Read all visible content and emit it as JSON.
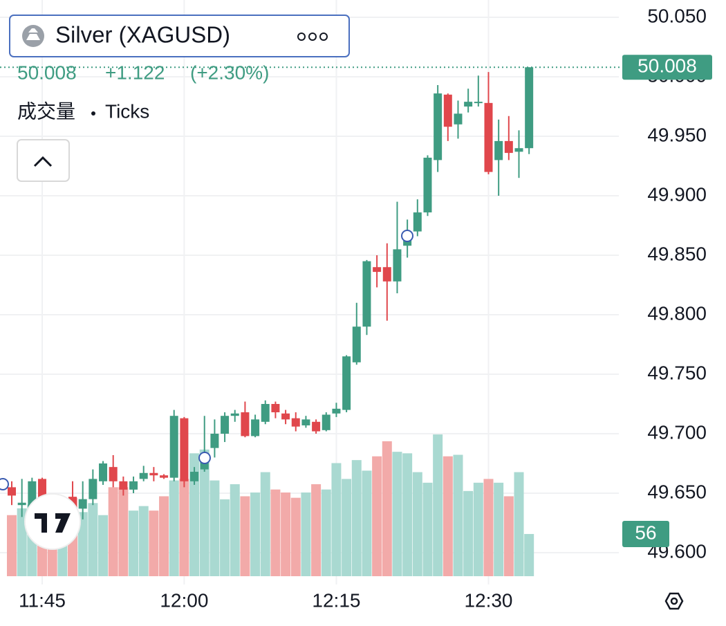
{
  "header": {
    "symbol": "Silver (XAGUSD)",
    "price": "50.008",
    "change": "+1.122",
    "change_pct": "(+2.30%)",
    "volume_label": "成交量",
    "volume_source": "Ticks"
  },
  "chart_data": {
    "type": "candlestick",
    "categories": [
      null,
      null,
      null,
      "11:45",
      null,
      null,
      null,
      null,
      null,
      null,
      null,
      null,
      null,
      null,
      null,
      null,
      null,
      "12:00",
      null,
      null,
      null,
      null,
      null,
      null,
      null,
      null,
      null,
      null,
      null,
      null,
      null,
      null,
      "12:15",
      null,
      null,
      null,
      null,
      null,
      null,
      null,
      null,
      null,
      null,
      null,
      null,
      null,
      null,
      "12:30",
      null,
      null,
      null,
      null
    ],
    "open": [
      49.655,
      49.64,
      49.63,
      49.662,
      49.63,
      49.615,
      49.647,
      49.637,
      49.645,
      49.66,
      49.672,
      49.66,
      49.653,
      49.662,
      49.667,
      49.665,
      49.663,
      49.713,
      49.66,
      49.67,
      49.688,
      49.7,
      49.715,
      49.718,
      49.698,
      49.71,
      49.725,
      49.717,
      49.713,
      49.707,
      49.71,
      49.703,
      49.717,
      49.72,
      49.76,
      49.79,
      49.84,
      49.84,
      49.828,
      49.858,
      49.87,
      49.886,
      49.93,
      49.985,
      49.96,
      49.975,
      49.978,
      49.978,
      49.93,
      49.946,
      49.937,
      49.94
    ],
    "high": [
      49.66,
      49.662,
      49.663,
      49.663,
      49.633,
      49.642,
      49.66,
      49.66,
      49.67,
      49.677,
      49.682,
      49.664,
      49.664,
      49.673,
      49.672,
      49.666,
      49.72,
      49.714,
      49.672,
      49.715,
      49.712,
      49.718,
      49.72,
      49.727,
      49.716,
      49.728,
      49.727,
      49.72,
      49.718,
      49.715,
      49.712,
      49.718,
      49.726,
      49.766,
      49.81,
      49.846,
      49.85,
      49.86,
      49.895,
      49.88,
      49.897,
      49.934,
      49.993,
      49.986,
      49.98,
      49.99,
      50.001,
      50.004,
      49.964,
      49.967,
      49.955,
      50.008
    ],
    "low": [
      49.64,
      49.63,
      49.625,
      49.612,
      49.605,
      49.605,
      49.62,
      49.628,
      49.64,
      49.657,
      49.655,
      49.648,
      49.65,
      49.66,
      49.66,
      49.662,
      49.66,
      49.655,
      49.657,
      49.668,
      49.68,
      49.693,
      49.71,
      49.697,
      49.697,
      49.708,
      49.713,
      49.708,
      49.702,
      49.705,
      49.7,
      49.702,
      49.714,
      49.718,
      49.758,
      49.783,
      49.823,
      49.795,
      49.818,
      49.848,
      49.866,
      49.883,
      49.92,
      49.946,
      49.948,
      49.97,
      49.975,
      49.918,
      49.9,
      49.93,
      49.915,
      49.935
    ],
    "close": [
      49.648,
      49.642,
      49.66,
      49.618,
      49.618,
      49.64,
      49.637,
      49.645,
      49.662,
      49.675,
      49.66,
      49.653,
      49.66,
      49.667,
      49.665,
      49.663,
      49.715,
      49.66,
      49.668,
      49.682,
      49.7,
      49.715,
      49.717,
      49.698,
      49.712,
      49.725,
      49.718,
      49.712,
      49.706,
      49.712,
      49.702,
      49.716,
      49.721,
      49.765,
      49.79,
      49.845,
      49.836,
      49.828,
      49.855,
      49.87,
      49.886,
      49.932,
      49.986,
      49.958,
      49.969,
      49.979,
      49.979,
      49.92,
      49.946,
      49.936,
      49.94,
      50.008
    ],
    "volume": [
      81,
      90,
      95,
      81,
      85,
      87,
      104,
      85,
      97,
      81,
      118,
      118,
      87,
      93,
      87,
      106,
      127,
      129,
      163,
      168,
      127,
      102,
      122,
      106,
      111,
      138,
      115,
      111,
      104,
      111,
      122,
      115,
      150,
      129,
      154,
      140,
      159,
      179,
      165,
      163,
      138,
      124,
      188,
      159,
      161,
      113,
      124,
      129,
      124,
      106,
      138,
      56
    ],
    "ylim": [
      49.6,
      50.05
    ],
    "yticks": [
      {
        "value": 49.6,
        "label": "49.600"
      },
      {
        "value": 49.65,
        "label": "49.650"
      },
      {
        "value": 49.7,
        "label": "49.700"
      },
      {
        "value": 49.75,
        "label": "49.750"
      },
      {
        "value": 49.8,
        "label": "49.800"
      },
      {
        "value": 49.85,
        "label": "49.850"
      },
      {
        "value": 49.9,
        "label": "49.900"
      },
      {
        "value": 49.95,
        "label": "49.950"
      },
      {
        "value": 50.0,
        "label": "50.000"
      },
      {
        "value": 50.05,
        "label": "50.050"
      }
    ],
    "vlim": [
      0,
      300
    ],
    "up_color": "#3f9c82",
    "down_color": "#e0474c",
    "volume_up_color": "#a9d9d1",
    "volume_down_color": "#f2aaa9",
    "grid": true
  }
}
